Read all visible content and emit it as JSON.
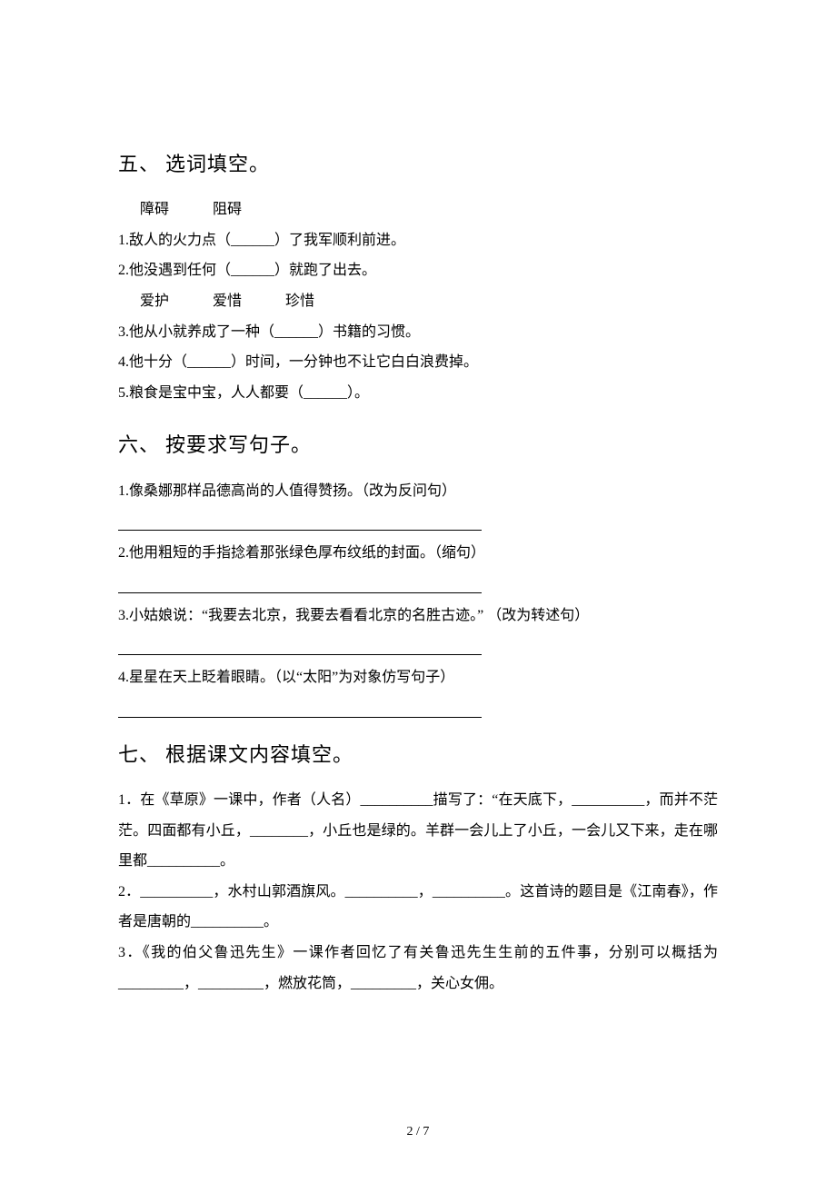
{
  "sections": {
    "s5": {
      "num": "五、",
      "title": "选词填空。",
      "word_group1": "障碍　　　阻碍",
      "q1": "1.敌人的火力点（______）了我军顺利前进。",
      "q2": "2.他没遇到任何（______）就跑了出去。",
      "word_group2": "爱护　　　爱惜　　　珍惜",
      "q3": "3.他从小就养成了一种（______）书籍的习惯。",
      "q4": "4.他十分（______）时间，一分钟也不让它白白浪费掉。",
      "q5": "5.粮食是宝中宝，人人都要（______）。"
    },
    "s6": {
      "num": "六、",
      "title": "按要求写句子。",
      "q1": "1.像桑娜那样品德高尚的人值得赞扬。（改为反问句）",
      "q2": "2.他用粗短的手指捻着那张绿色厚布纹纸的封面。（缩句）",
      "q3": "3.小姑娘说：“我要去北京，我要去看看北京的名胜古迹。” （改为转述句）",
      "q4": "4.星星在天上眨着眼睛。（以“太阳”为对象仿写句子）"
    },
    "s7": {
      "num": "七、",
      "title": "根据课文内容填空。",
      "q1": "1．在《草原》一课中，作者（人名）__________描写了：“在天底下，__________，而并不茫茫。四面都有小丘，________，小丘也是绿的。羊群一会儿上了小丘，一会儿又下来，走在哪里都__________。",
      "q2": "2．__________，水村山郭酒旗风。__________，__________。这首诗的题目是《江南春》，作者是唐朝的__________。",
      "q3": "3．《我的伯父鲁迅先生》一课作者回忆了有关鲁迅先生生前的五件事，分别可以概括为_________，_________，燃放花筒，_________，关心女佣。"
    }
  },
  "pager": "2 / 7"
}
